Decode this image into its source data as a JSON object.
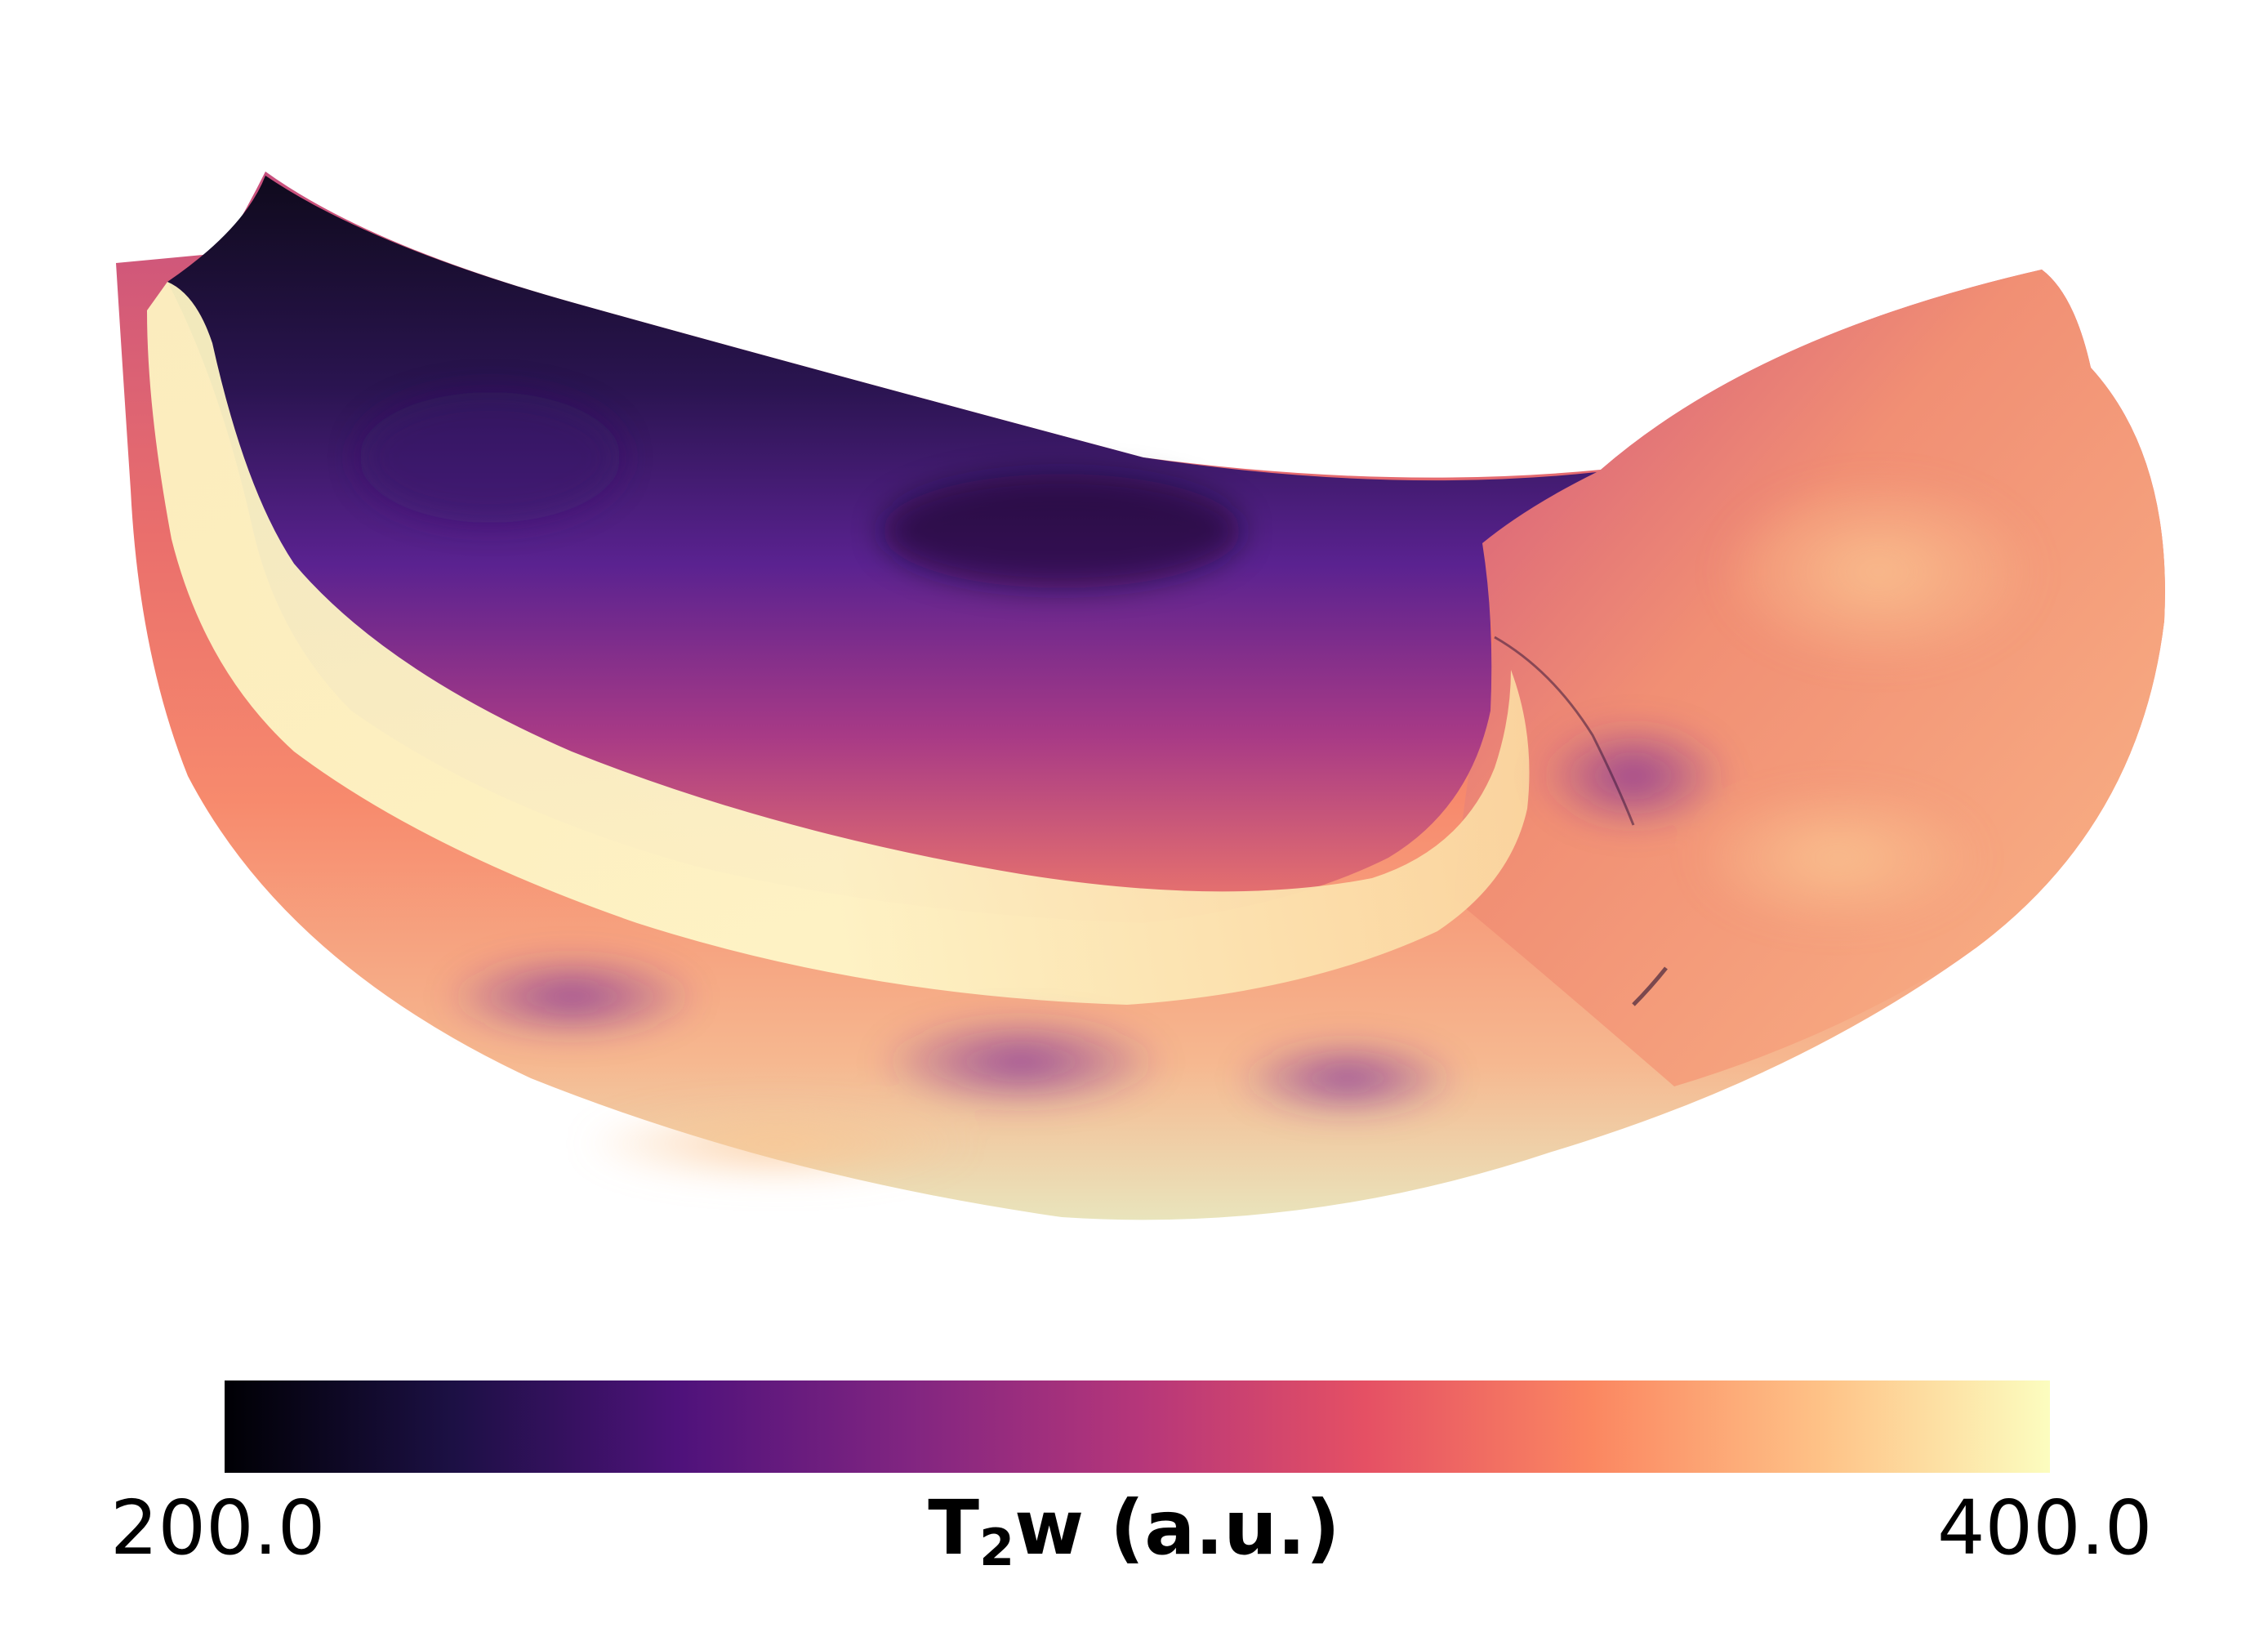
{
  "colorbar": {
    "min_label": "200.0",
    "max_label": "400.0",
    "label_main": "T",
    "label_sub": "2",
    "label_rest": "w (a.u.)",
    "colormap": "magma",
    "stops": [
      "#000004",
      "#1c1044",
      "#4f127b",
      "#812581",
      "#b5367a",
      "#e55064",
      "#fb8761",
      "#fec287",
      "#fcfdbf"
    ]
  },
  "surface": {
    "colors": {
      "dark": "#0f0a1c",
      "purple": "#4a2080",
      "magenta": "#b03d86",
      "coral": "#f07a6a",
      "peach": "#fbb08a",
      "cream": "#fdf4c2"
    }
  }
}
